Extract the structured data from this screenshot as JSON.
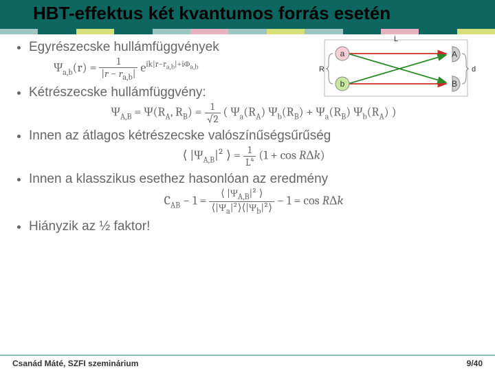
{
  "title": "HBT-effektus két kvantumos forrás esetén",
  "header_bg": "#0d6760",
  "strip_colors": [
    "#9cc6bf",
    "#0d6760",
    "#d6df7a",
    "#0d6760",
    "#9cc6bf",
    "#e7b3c1",
    "#9cc6bf",
    "#d6df7a",
    "#9cc6bf",
    "#0d6760",
    "#e7b3c1",
    "#0d6760",
    "#d6df7a"
  ],
  "bullets": {
    "b1": "Egyrészecske hullámfüggvények",
    "b2": "Kétrészecske hullámfüggvény:",
    "b3": "Innen az átlagos kétrészecske valószínűségsűrűség",
    "b4": "Innen a klasszikus esethez hasonlóan az eredmény",
    "b5": "Hiányzik az ½ faktor!"
  },
  "eq1_left": "Ψ",
  "eq1_sub": "a,b",
  "eq1_arg": "(r) = ",
  "eq1_num": "1",
  "eq1_den": "|r − r_{a,b}|",
  "eq1_exp": "e^{ik|r−r_{a,b}|+iΦ_{a,b}}",
  "eq2": "Ψ_{A,B} = Ψ(R_A, R_B) = (1/√2) ( Ψ_a(R_A)Ψ_b(R_B) + Ψ_a(R_B)Ψ_b(R_A) )",
  "eq3": "⟨|Ψ_{A,B}|²⟩ = (1/L⁴) (1 + cos R·Δk)",
  "eq4": "C_{AB} − 1 = ⟨|Ψ_{A,B}|²⟩ / (⟨|Ψ_a|²⟩⟨|Ψ_b|²⟩) − 1 = cos R·Δk",
  "diagram": {
    "L_label": "L",
    "R_label": "R",
    "d_label": "d",
    "nodes": {
      "a": {
        "label": "a",
        "fill": "#f8cfd4",
        "stroke": "#888"
      },
      "b": {
        "label": "b",
        "fill": "#c9e7a0",
        "stroke": "#888"
      },
      "A": {
        "label": "A",
        "fill": "#d0d0d0",
        "stroke": "#888"
      },
      "B": {
        "label": "B",
        "fill": "#d0d0d0",
        "stroke": "#888"
      }
    },
    "arrow_red": "#cc2a2a",
    "arrow_green": "#2a8a2a",
    "R_bracket_color": "#888"
  },
  "bullet_fontsize": 19,
  "text_color": "#666666",
  "footer": {
    "left": "Csanád Máté, SZFI szeminárium",
    "right": "9/40",
    "border_color": "#88bfb8"
  }
}
